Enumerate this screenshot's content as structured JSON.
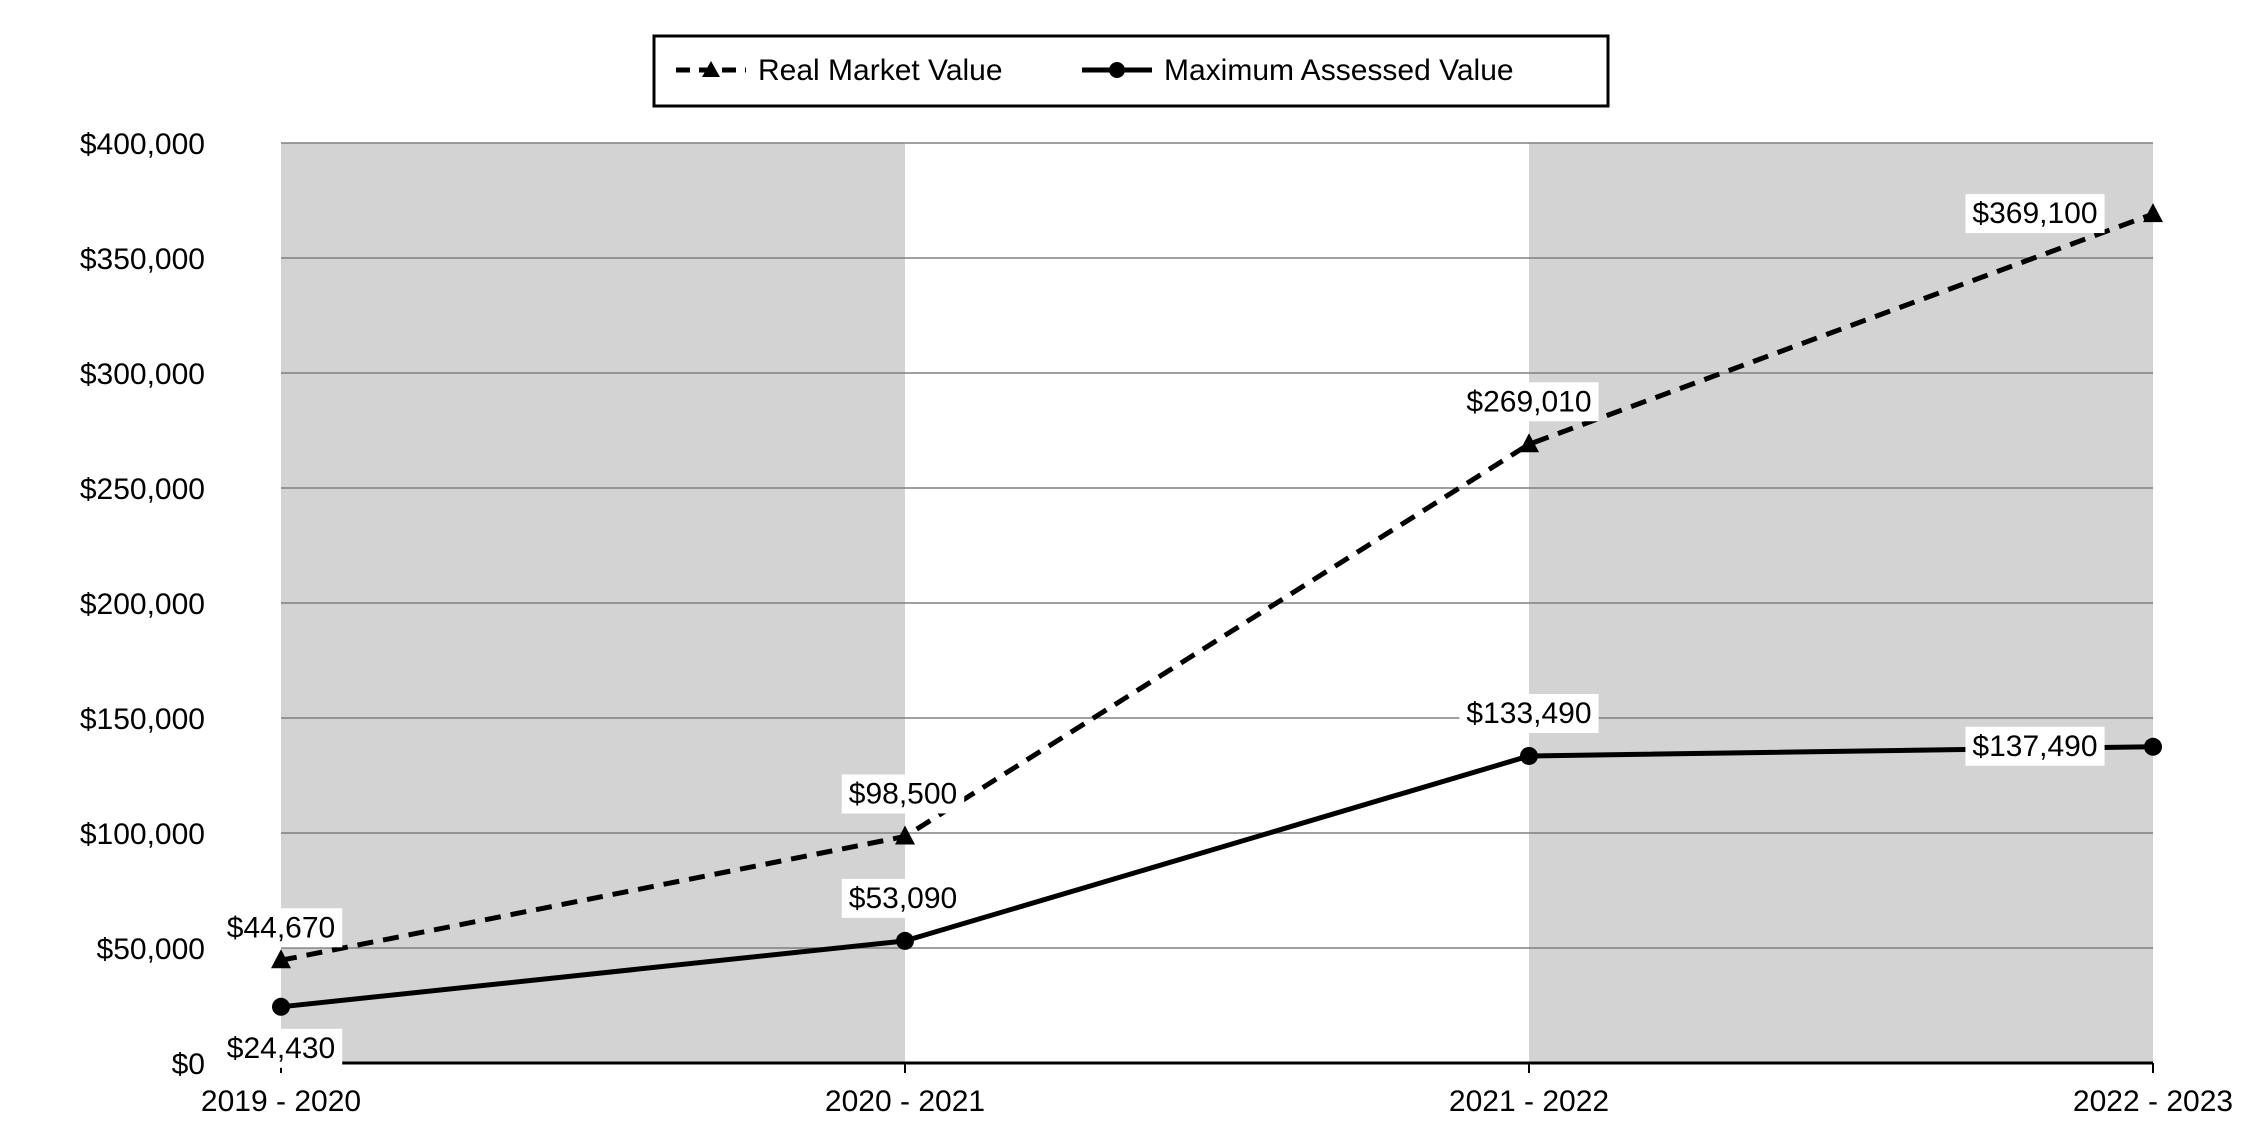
{
  "chart_data": {
    "type": "line",
    "categories": [
      "2019 - 2020",
      "2020 - 2021",
      "2021 - 2022",
      "2022 - 2023"
    ],
    "series": [
      {
        "name": "Real Market Value",
        "values": [
          44670,
          98500,
          269010,
          369100
        ],
        "labels": [
          "$44,670",
          "$98,500",
          "$269,010",
          "$369,100"
        ],
        "line_style": "dashed",
        "marker": "triangle",
        "color": "#000000"
      },
      {
        "name": "Maximum Assessed Value",
        "values": [
          24430,
          53090,
          133490,
          137490
        ],
        "labels": [
          "$24,430",
          "$53,090",
          "$133,490",
          "$137,490"
        ],
        "line_style": "solid",
        "marker": "circle",
        "color": "#000000"
      }
    ],
    "ylim": [
      0,
      400000
    ],
    "yticks": [
      0,
      50000,
      100000,
      150000,
      200000,
      250000,
      300000,
      350000,
      400000
    ],
    "ytick_labels": [
      "$0",
      "$50,000",
      "$100,000",
      "$150,000",
      "$200,000",
      "$250,000",
      "$300,000",
      "$350,000",
      "$400,000"
    ],
    "grid": true,
    "legend_position": "top-center",
    "band_color": "#d3d3d3",
    "grid_color": "#808080"
  }
}
